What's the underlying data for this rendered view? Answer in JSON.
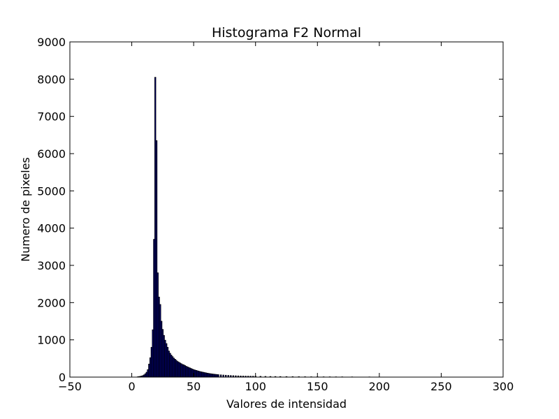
{
  "chart_data": {
    "type": "bar",
    "title": "Histograma F2 Normal",
    "xlabel": "Valores de intensidad",
    "ylabel": "Numero de pixeles",
    "xlim": [
      -50,
      300
    ],
    "ylim": [
      0,
      9000
    ],
    "xticks": [
      -50,
      0,
      50,
      100,
      150,
      200,
      250,
      300
    ],
    "yticks": [
      0,
      1000,
      2000,
      3000,
      4000,
      5000,
      6000,
      7000,
      8000,
      9000
    ],
    "bar_color": "#00008b",
    "edge_color": "#000000",
    "grid": false,
    "bins": [
      {
        "x": 5,
        "count": 10
      },
      {
        "x": 6,
        "count": 15
      },
      {
        "x": 7,
        "count": 20
      },
      {
        "x": 8,
        "count": 30
      },
      {
        "x": 9,
        "count": 40
      },
      {
        "x": 10,
        "count": 60
      },
      {
        "x": 11,
        "count": 90
      },
      {
        "x": 12,
        "count": 130
      },
      {
        "x": 13,
        "count": 200
      },
      {
        "x": 14,
        "count": 350
      },
      {
        "x": 15,
        "count": 520
      },
      {
        "x": 16,
        "count": 800
      },
      {
        "x": 17,
        "count": 1270
      },
      {
        "x": 18,
        "count": 3700
      },
      {
        "x": 19,
        "count": 8050
      },
      {
        "x": 20,
        "count": 6350
      },
      {
        "x": 21,
        "count": 2800
      },
      {
        "x": 22,
        "count": 2150
      },
      {
        "x": 23,
        "count": 1950
      },
      {
        "x": 24,
        "count": 1500
      },
      {
        "x": 25,
        "count": 1280
      },
      {
        "x": 26,
        "count": 1120
      },
      {
        "x": 27,
        "count": 990
      },
      {
        "x": 28,
        "count": 900
      },
      {
        "x": 29,
        "count": 800
      },
      {
        "x": 30,
        "count": 700
      },
      {
        "x": 31,
        "count": 640
      },
      {
        "x": 32,
        "count": 590
      },
      {
        "x": 33,
        "count": 550
      },
      {
        "x": 34,
        "count": 510
      },
      {
        "x": 35,
        "count": 480
      },
      {
        "x": 36,
        "count": 450
      },
      {
        "x": 37,
        "count": 420
      },
      {
        "x": 38,
        "count": 400
      },
      {
        "x": 39,
        "count": 380
      },
      {
        "x": 40,
        "count": 360
      },
      {
        "x": 41,
        "count": 340
      },
      {
        "x": 42,
        "count": 330
      },
      {
        "x": 43,
        "count": 310
      },
      {
        "x": 44,
        "count": 290
      },
      {
        "x": 45,
        "count": 275
      },
      {
        "x": 46,
        "count": 260
      },
      {
        "x": 47,
        "count": 245
      },
      {
        "x": 48,
        "count": 230
      },
      {
        "x": 49,
        "count": 215
      },
      {
        "x": 50,
        "count": 200
      },
      {
        "x": 51,
        "count": 190
      },
      {
        "x": 52,
        "count": 180
      },
      {
        "x": 53,
        "count": 170
      },
      {
        "x": 54,
        "count": 160
      },
      {
        "x": 55,
        "count": 150
      },
      {
        "x": 56,
        "count": 142
      },
      {
        "x": 57,
        "count": 135
      },
      {
        "x": 58,
        "count": 128
      },
      {
        "x": 59,
        "count": 120
      },
      {
        "x": 60,
        "count": 113
      },
      {
        "x": 61,
        "count": 106
      },
      {
        "x": 62,
        "count": 100
      },
      {
        "x": 63,
        "count": 94
      },
      {
        "x": 64,
        "count": 89
      },
      {
        "x": 65,
        "count": 84
      },
      {
        "x": 66,
        "count": 80
      },
      {
        "x": 67,
        "count": 76
      },
      {
        "x": 68,
        "count": 72
      },
      {
        "x": 69,
        "count": 68
      },
      {
        "x": 70,
        "count": 65
      },
      {
        "x": 72,
        "count": 60
      },
      {
        "x": 74,
        "count": 55
      },
      {
        "x": 76,
        "count": 50
      },
      {
        "x": 78,
        "count": 46
      },
      {
        "x": 80,
        "count": 42
      },
      {
        "x": 82,
        "count": 38
      },
      {
        "x": 84,
        "count": 35
      },
      {
        "x": 86,
        "count": 32
      },
      {
        "x": 88,
        "count": 30
      },
      {
        "x": 90,
        "count": 28
      },
      {
        "x": 92,
        "count": 26
      },
      {
        "x": 94,
        "count": 25
      },
      {
        "x": 96,
        "count": 24
      },
      {
        "x": 98,
        "count": 23
      },
      {
        "x": 100,
        "count": 22
      },
      {
        "x": 104,
        "count": 20
      },
      {
        "x": 108,
        "count": 18
      },
      {
        "x": 112,
        "count": 16
      },
      {
        "x": 116,
        "count": 15
      },
      {
        "x": 120,
        "count": 14
      },
      {
        "x": 125,
        "count": 13
      },
      {
        "x": 130,
        "count": 12
      },
      {
        "x": 135,
        "count": 11
      },
      {
        "x": 140,
        "count": 10
      },
      {
        "x": 145,
        "count": 9
      },
      {
        "x": 150,
        "count": 9
      },
      {
        "x": 155,
        "count": 8
      },
      {
        "x": 160,
        "count": 8
      },
      {
        "x": 165,
        "count": 7
      },
      {
        "x": 170,
        "count": 7
      },
      {
        "x": 178,
        "count": 6
      },
      {
        "x": 192,
        "count": 5
      }
    ]
  }
}
